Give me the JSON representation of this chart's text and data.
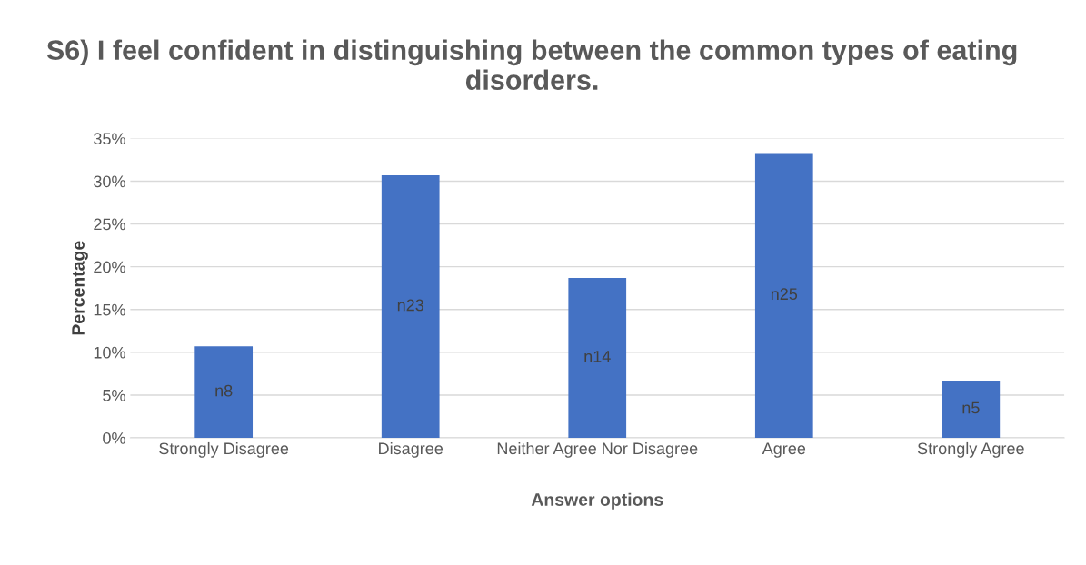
{
  "chart_data": {
    "type": "bar",
    "title": "S6) I feel confident in distinguishing between the common types of eating disorders.",
    "xlabel": "Answer options",
    "ylabel": "Percentage",
    "categories": [
      "Strongly Disagree",
      "Disagree",
      "Neither Agree Nor Disagree",
      "Agree",
      "Strongly Agree"
    ],
    "values": [
      10.7,
      30.7,
      18.7,
      33.3,
      6.7
    ],
    "value_labels": [
      "n8",
      "n23",
      "n14",
      "n25",
      "n5"
    ],
    "color": "#4472c4",
    "ylim": [
      0,
      35
    ],
    "yticks": [
      {
        "value": 0,
        "label": "0%"
      },
      {
        "value": 5,
        "label": "5%"
      },
      {
        "value": 10,
        "label": "10%"
      },
      {
        "value": 15,
        "label": "15%"
      },
      {
        "value": 20,
        "label": "20%"
      },
      {
        "value": 25,
        "label": "25%"
      },
      {
        "value": 30,
        "label": "30%"
      },
      {
        "value": 35,
        "label": "35%"
      }
    ],
    "grid": "y",
    "legend": false
  }
}
